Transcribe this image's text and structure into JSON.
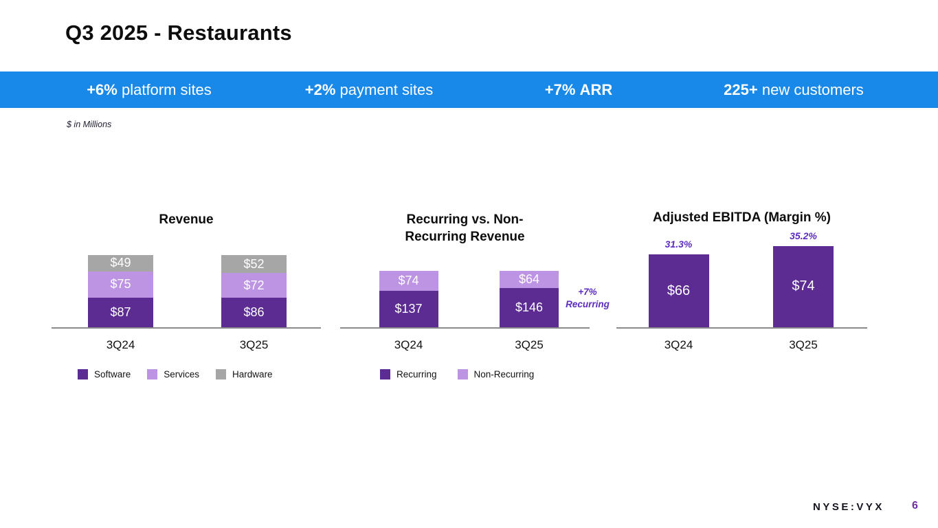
{
  "slide": {
    "title": "Q3 2025 - Restaurants",
    "units_note": "$ in Millions",
    "footer": {
      "ticker": "NYSE:VYX",
      "page": "6"
    }
  },
  "banner": {
    "background": "#1989e9",
    "items": [
      {
        "value": "+6%",
        "label": "platform sites"
      },
      {
        "value": "+2%",
        "label": "payment sites"
      },
      {
        "value": "+7%",
        "label": "ARR"
      },
      {
        "value": "225+",
        "label": "new customers"
      }
    ]
  },
  "colors": {
    "banner_blue": "#1989e9",
    "purple_dark": "#5c2c92",
    "purple_light": "#bd93e3",
    "gray": "#a6a6a6",
    "accent_purple": "#5d2bc0",
    "page_number_purple": "#7030a0",
    "axis_gray": "#8a8a8a"
  },
  "chart_data": [
    {
      "type": "bar",
      "stacked": true,
      "title": "Revenue",
      "categories": [
        "3Q24",
        "3Q25"
      ],
      "series": [
        {
          "name": "Software",
          "values": [
            87,
            86
          ],
          "color": "#5c2c92"
        },
        {
          "name": "Services",
          "values": [
            75,
            72
          ],
          "color": "#bd93e3"
        },
        {
          "name": "Hardware",
          "values": [
            49,
            52
          ],
          "color": "#a6a6a6"
        }
      ],
      "value_prefix": "$",
      "units": "USD millions",
      "legend_position": "bottom",
      "grid": false
    },
    {
      "type": "bar",
      "stacked": true,
      "title": "Recurring vs. Non-\nRecurring Revenue",
      "categories": [
        "3Q24",
        "3Q25"
      ],
      "series": [
        {
          "name": "Recurring",
          "values": [
            137,
            146
          ],
          "color": "#5c2c92"
        },
        {
          "name": "Non-Recurring",
          "values": [
            74,
            64
          ],
          "color": "#bd93e3"
        }
      ],
      "value_prefix": "$",
      "units": "USD millions",
      "annotation": "+7%\nRecurring",
      "legend_position": "bottom",
      "grid": false
    },
    {
      "type": "bar",
      "stacked": false,
      "title": "Adjusted EBITDA (Margin %)",
      "categories": [
        "3Q24",
        "3Q25"
      ],
      "series": [
        {
          "name": "Adjusted EBITDA",
          "values": [
            66,
            74
          ],
          "color": "#5c2c92"
        }
      ],
      "value_prefix": "$",
      "units": "USD millions",
      "data_labels_above": [
        "31.3%",
        "35.2%"
      ],
      "legend_position": "none",
      "grid": false
    }
  ]
}
